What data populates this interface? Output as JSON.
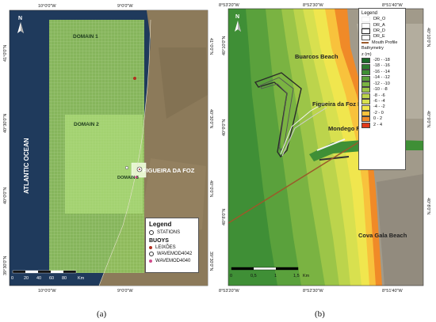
{
  "panel_a": {
    "caption": "(a)",
    "top_coords": [
      "10°0'0\"W",
      "9°0'0\"W"
    ],
    "bottom_coords": [
      "10°0'0\"W",
      "9°0'0\"W"
    ],
    "left_coords": [
      "41°0'0\"N",
      "40°30'0\"N",
      "40°0'0\"N",
      "39°30'0\"N"
    ],
    "right_coords": [
      "41°0'0\"N",
      "40°30'0\"N",
      "40°0'0\"N",
      "39°30'0\"N"
    ],
    "ocean_label": "ATLANTIC OCEAN",
    "domain1_label": "DOMAIN 1",
    "domain2_label": "DOMAIN 2",
    "domain3_label": "DOMAIN 3",
    "city_label": "FIGUEIRA DA FOZ",
    "north_label": "N",
    "scale_labels": [
      "0",
      "20",
      "40",
      "60",
      "80"
    ],
    "scale_unit": "Km",
    "legend": {
      "title": "Legend",
      "stations_label": "STATIONS",
      "buoys_title": "BUOYS",
      "buoys": [
        "LEIXÕES",
        "WAVEMOD4042",
        "WAVEMOD4040"
      ]
    },
    "colors": {
      "ocean": "#1f3a5c",
      "grid": "#9bd068",
      "land": "#8c7a5a"
    }
  },
  "panel_b": {
    "caption": "(b)",
    "top_coords": [
      "8°53'20\"W",
      "8°52'30\"W",
      "8°51'40\"W"
    ],
    "bottom_coords": [
      "8°53'20\"W",
      "8°52'30\"W",
      "8°51'40\"W"
    ],
    "left_coords": [
      "40°10'0\"N",
      "40°9'0\"N",
      "40°8'0\"N"
    ],
    "right_coords": [
      "40°10'0\"N",
      "40°9'0\"N",
      "40°8'0\"N"
    ],
    "place_buarcos": "Buarcos Beach",
    "place_figueira": "Figueira da Foz Beach",
    "place_mondego": "Mondego River Estuary",
    "place_cova": "Cova Gala Beach",
    "north_label": "N",
    "scale_labels": [
      "0",
      "0,5",
      "1",
      "1,5"
    ],
    "scale_unit": "Km",
    "legend": {
      "title": "Legend",
      "lines": [
        "DR_O",
        "DR_A",
        "DR_D",
        "DR_E"
      ],
      "mouth_profile": "Mouth Profile",
      "bathy_title": "Bathymetry",
      "bathy_unit": "z (m)",
      "classes": [
        {
          "label": "-20 - -18",
          "color": "#1a6b2a"
        },
        {
          "label": "-18 - -16",
          "color": "#2c7d30"
        },
        {
          "label": "-16 - -14",
          "color": "#3f8f36"
        },
        {
          "label": "-14 - -12",
          "color": "#5aa13c"
        },
        {
          "label": "-12 - -10",
          "color": "#7ab342"
        },
        {
          "label": "-10 - -8",
          "color": "#9cc548"
        },
        {
          "label": "-8 - -6",
          "color": "#bcd44c"
        },
        {
          "label": "-6 - -4",
          "color": "#d8e04f"
        },
        {
          "label": "-4 - -2",
          "color": "#f0e64e"
        },
        {
          "label": "-2 - 0",
          "color": "#f8c23c"
        },
        {
          "label": "0 - 2",
          "color": "#f08a28"
        },
        {
          "label": "2 - 4",
          "color": "#e03a1a"
        }
      ]
    }
  }
}
